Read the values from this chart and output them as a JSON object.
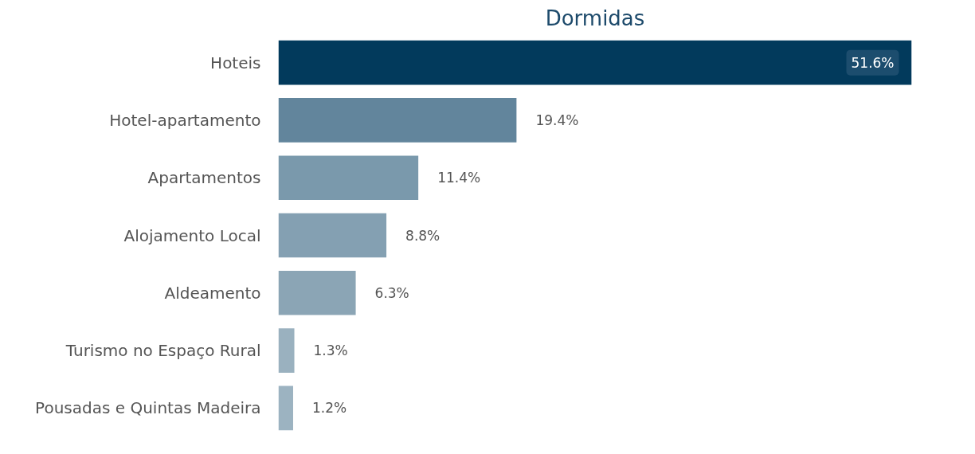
{
  "chart_data": {
    "type": "bar",
    "orientation": "horizontal",
    "title": "Dormidas",
    "categories": [
      "Hoteis",
      "Hotel-apartamento",
      "Apartamentos",
      "Alojamento Local",
      "Aldeamento",
      "Turismo no Espaço Rural",
      "Pousadas e Quintas Madeira"
    ],
    "values": [
      51.6,
      19.4,
      11.4,
      8.8,
      6.3,
      1.3,
      1.2
    ],
    "colors": [
      "#023a5c",
      "#62859c",
      "#7a99ac",
      "#84a0b2",
      "#8ba5b5",
      "#9ab1bf",
      "#9cb3c1"
    ],
    "value_labels": [
      "51.6%",
      "19.4%",
      "11.4%",
      "8.8%",
      "6.3%",
      "1.3%",
      "1.2%"
    ],
    "grid": false
  }
}
